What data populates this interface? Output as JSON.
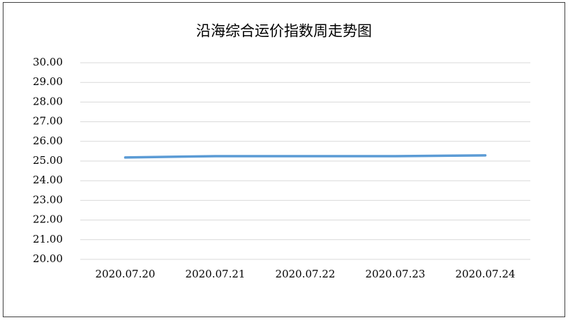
{
  "chart_data": {
    "type": "line",
    "title": "沿海综合运价指数周走势图",
    "categories": [
      "2020.07.20",
      "2020.07.21",
      "2020.07.22",
      "2020.07.23",
      "2020.07.24"
    ],
    "series": [
      {
        "name": "沿海综合运价指数",
        "color": "#5b9bd5",
        "values": [
          25.18,
          25.25,
          25.25,
          25.25,
          25.29
        ]
      }
    ],
    "ylim": [
      20,
      30
    ],
    "yticks": [
      {
        "value": 20,
        "label": "20.00"
      },
      {
        "value": 21,
        "label": "21.00"
      },
      {
        "value": 22,
        "label": "22.00"
      },
      {
        "value": 23,
        "label": "23.00"
      },
      {
        "value": 24,
        "label": "24.00"
      },
      {
        "value": 25,
        "label": "25.00"
      },
      {
        "value": 26,
        "label": "26.00"
      },
      {
        "value": 27,
        "label": "27.00"
      },
      {
        "value": 28,
        "label": "28.00"
      },
      {
        "value": 29,
        "label": "29.00"
      },
      {
        "value": 30,
        "label": "30.00"
      }
    ],
    "grid": true,
    "legend": false
  }
}
